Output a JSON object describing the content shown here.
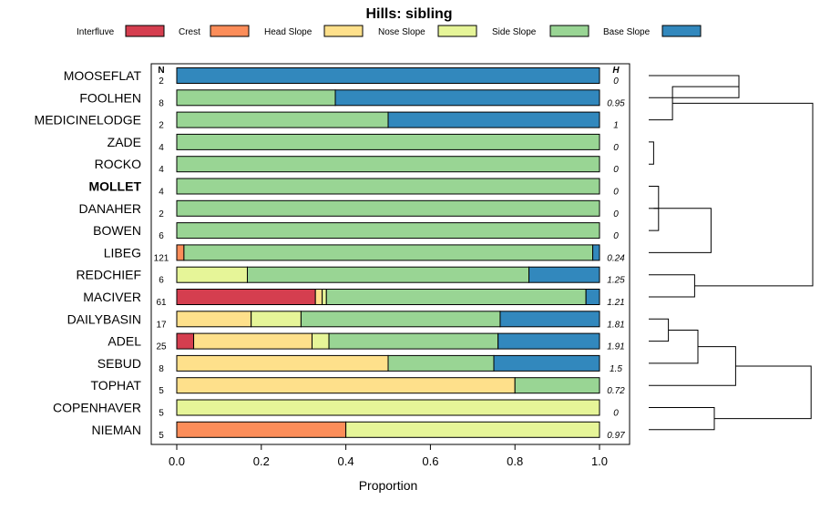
{
  "chart_data": {
    "type": "bar",
    "orientation": "horizontal",
    "stacked": true,
    "title": "Hills: sibling",
    "xlabel": "Proportion",
    "xlim": [
      0,
      1
    ],
    "xticks": [
      "0.0",
      "0.2",
      "0.4",
      "0.6",
      "0.8",
      "1.0"
    ],
    "n_header": "N",
    "h_header": "H",
    "bold_row": "MOLLET",
    "legend": [
      {
        "name": "Interfluve",
        "color": "#D53E4F"
      },
      {
        "name": "Crest",
        "color": "#FC8D59"
      },
      {
        "name": "Head Slope",
        "color": "#FEE08B"
      },
      {
        "name": "Nose Slope",
        "color": "#E6F598"
      },
      {
        "name": "Side Slope",
        "color": "#99D594"
      },
      {
        "name": "Base Slope",
        "color": "#3288BD"
      }
    ],
    "rows": [
      {
        "name": "MOOSEFLAT",
        "n": "2",
        "h": "0",
        "values": [
          0,
          0,
          0,
          0,
          0,
          1.0
        ]
      },
      {
        "name": "FOOLHEN",
        "n": "8",
        "h": "0.95",
        "values": [
          0,
          0,
          0,
          0,
          0.375,
          0.625
        ]
      },
      {
        "name": "MEDICINELODGE",
        "n": "2",
        "h": "1",
        "values": [
          0,
          0,
          0,
          0,
          0.5,
          0.5
        ]
      },
      {
        "name": "ZADE",
        "n": "4",
        "h": "0",
        "values": [
          0,
          0,
          0,
          0,
          1.0,
          0
        ]
      },
      {
        "name": "ROCKO",
        "n": "4",
        "h": "0",
        "values": [
          0,
          0,
          0,
          0,
          1.0,
          0
        ]
      },
      {
        "name": "MOLLET",
        "n": "4",
        "h": "0",
        "values": [
          0,
          0,
          0,
          0,
          1.0,
          0
        ]
      },
      {
        "name": "DANAHER",
        "n": "2",
        "h": "0",
        "values": [
          0,
          0,
          0,
          0,
          1.0,
          0
        ]
      },
      {
        "name": "BOWEN",
        "n": "6",
        "h": "0",
        "values": [
          0,
          0,
          0,
          0,
          1.0,
          0
        ]
      },
      {
        "name": "LIBEG",
        "n": "121",
        "h": "0.24",
        "values": [
          0,
          0.017,
          0,
          0,
          0.967,
          0.016
        ]
      },
      {
        "name": "REDCHIEF",
        "n": "6",
        "h": "1.25",
        "values": [
          0,
          0,
          0,
          0.167,
          0.666,
          0.167
        ]
      },
      {
        "name": "MACIVER",
        "n": "61",
        "h": "1.21",
        "values": [
          0.328,
          0,
          0.016,
          0.01,
          0.614,
          0.032
        ]
      },
      {
        "name": "DAILYBASIN",
        "n": "17",
        "h": "1.81",
        "values": [
          0,
          0,
          0.176,
          0.118,
          0.471,
          0.235
        ]
      },
      {
        "name": "ADEL",
        "n": "25",
        "h": "1.91",
        "values": [
          0.04,
          0,
          0.28,
          0.04,
          0.4,
          0.24
        ]
      },
      {
        "name": "SEBUD",
        "n": "8",
        "h": "1.5",
        "values": [
          0,
          0,
          0.5,
          0,
          0.25,
          0.25
        ]
      },
      {
        "name": "TOPHAT",
        "n": "5",
        "h": "0.72",
        "values": [
          0,
          0,
          0.8,
          0,
          0.2,
          0
        ]
      },
      {
        "name": "COPENHAVER",
        "n": "5",
        "h": "0",
        "values": [
          0,
          0,
          0,
          1.0,
          0,
          0
        ]
      },
      {
        "name": "NIEMAN",
        "n": "5",
        "h": "0.97",
        "values": [
          0,
          0.4,
          0,
          0.6,
          0,
          0
        ]
      }
    ],
    "dendrogram": [
      {
        "a": "MOOSEFLAT",
        "b": "FOOLHEN",
        "height": 0.55
      },
      {
        "a": "FOOLHEN",
        "b": "MEDICINELODGE",
        "height": 0.145
      },
      {
        "a": "ZADE",
        "b": "ROCKO",
        "height": 0.03
      },
      {
        "a": "MOLLET",
        "b": "BOWEN",
        "height": 0.06
      },
      {
        "a": "DANAHER",
        "b": "BOWEN",
        "height": 0.03
      },
      {
        "a": "LIBEG",
        "b": "MOLLET",
        "height": 0.38
      },
      {
        "a": "REDCHIEF",
        "b": "MACIVER",
        "height": 0.28
      },
      {
        "a": "MOOSEFLAT",
        "b": "REDCHIEF",
        "height": 1.0
      },
      {
        "a": "DAILYBASIN",
        "b": "ADEL",
        "height": 0.12
      },
      {
        "a": "ADEL",
        "b": "SEBUD",
        "height": 0.3
      },
      {
        "a": "SEBUD",
        "b": "TOPHAT",
        "height": 0.53
      },
      {
        "a": "COPENHAVER",
        "b": "NIEMAN",
        "height": 0.4
      },
      {
        "a": "TOPHAT",
        "b": "NIEMAN",
        "height": 0.99
      }
    ]
  }
}
